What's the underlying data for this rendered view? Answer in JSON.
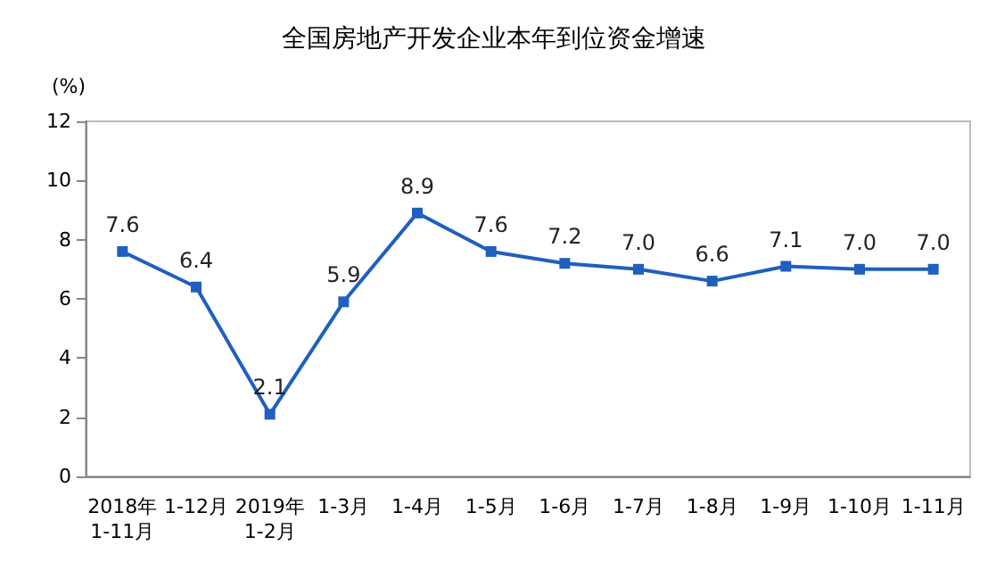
{
  "chart_data": {
    "type": "line",
    "title": "全国房地产开发企业本年到位资金增速",
    "ylabel": "(%)",
    "categories": [
      "2018年\n1-11月",
      "1-12月",
      "2019年\n1-2月",
      "1-3月",
      "1-4月",
      "1-5月",
      "1-6月",
      "1-7月",
      "1-8月",
      "1-9月",
      "1-10月",
      "1-11月"
    ],
    "series": [
      {
        "color": "#1f5fbf",
        "values": [
          7.6,
          6.4,
          2.1,
          5.9,
          8.9,
          7.6,
          7.2,
          7.0,
          6.6,
          7.1,
          7.0,
          7.0
        ],
        "value_labels": [
          "7.6",
          "6.4",
          "2.1",
          "5.9",
          "8.9",
          "7.6",
          "7.2",
          "7.0",
          "6.6",
          "7.1",
          "7.0",
          "7.0"
        ]
      }
    ],
    "ylim": [
      0,
      12
    ],
    "yticks": [
      0,
      2,
      4,
      6,
      8,
      10,
      12
    ],
    "marker": "square",
    "line_style": "solid",
    "grid": false
  }
}
